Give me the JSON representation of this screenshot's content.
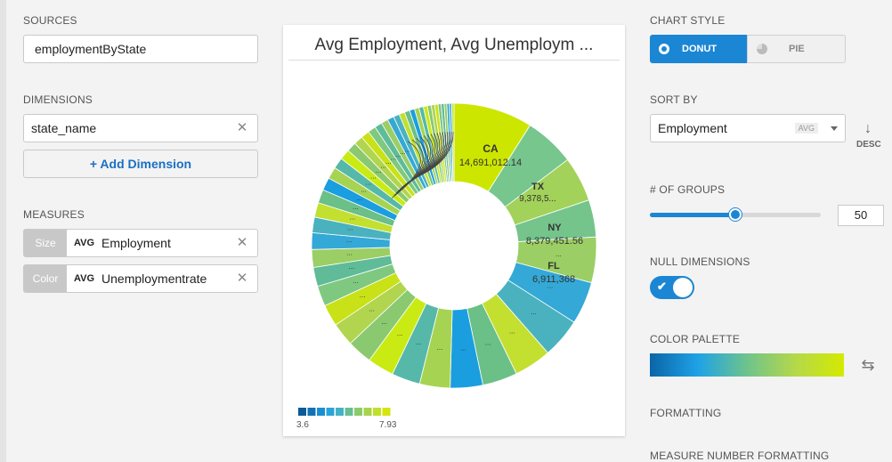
{
  "sources": {
    "label": "SOURCES",
    "value": "employmentByState"
  },
  "dimensions": {
    "label": "DIMENSIONS",
    "items": [
      {
        "value": "state_name"
      }
    ],
    "add_label": "+ Add Dimension"
  },
  "measures": {
    "label": "MEASURES",
    "items": [
      {
        "role": "Size",
        "agg": "AVG",
        "name": "Employment"
      },
      {
        "role": "Color",
        "agg": "AVG",
        "name": "Unemploymentrate"
      }
    ]
  },
  "chart": {
    "title": "Avg Employment, Avg Unemploym ...",
    "legend": {
      "min": "3.6",
      "max": "7.93",
      "colors": [
        "#0a5a96",
        "#1272b4",
        "#1a8fcf",
        "#2aa4d8",
        "#45b1c6",
        "#67bf93",
        "#8bcb6a",
        "#a9d34d",
        "#c2df2a",
        "#d4e60b"
      ]
    },
    "labels": [
      {
        "name": "CA",
        "value": "14,691,012.14"
      },
      {
        "name": "TX",
        "value": "9,378,5..."
      },
      {
        "name": "NY",
        "value": "8,379,451.56"
      },
      {
        "name": "FL",
        "value": "6,911,368"
      }
    ]
  },
  "chart_data": {
    "type": "pie",
    "title": "Avg Employment, Avg Unemploym ...",
    "categories": [
      "CA",
      "TX",
      "NY",
      "FL"
    ],
    "values": [
      14691012.14,
      9378500,
      8379451.56,
      6911368
    ],
    "legend_range": [
      3.6,
      7.93
    ],
    "donut": true
  },
  "style_panel": {
    "chart_style": {
      "label": "CHART STYLE",
      "donut": "DONUT",
      "pie": "PIE",
      "active": "DONUT"
    },
    "sort_by": {
      "label": "SORT BY",
      "value": "Employment",
      "agg": "AVG",
      "direction": "DESC"
    },
    "groups": {
      "label": "# OF GROUPS",
      "value": "50",
      "fraction": 0.5
    },
    "null_dimensions": {
      "label": "NULL DIMENSIONS",
      "on": true
    },
    "color_palette": {
      "label": "COLOR PALETTE"
    },
    "formatting": {
      "label": "FORMATTING"
    },
    "measure_number_formatting": {
      "label": "MEASURE NUMBER FORMATTING"
    }
  }
}
